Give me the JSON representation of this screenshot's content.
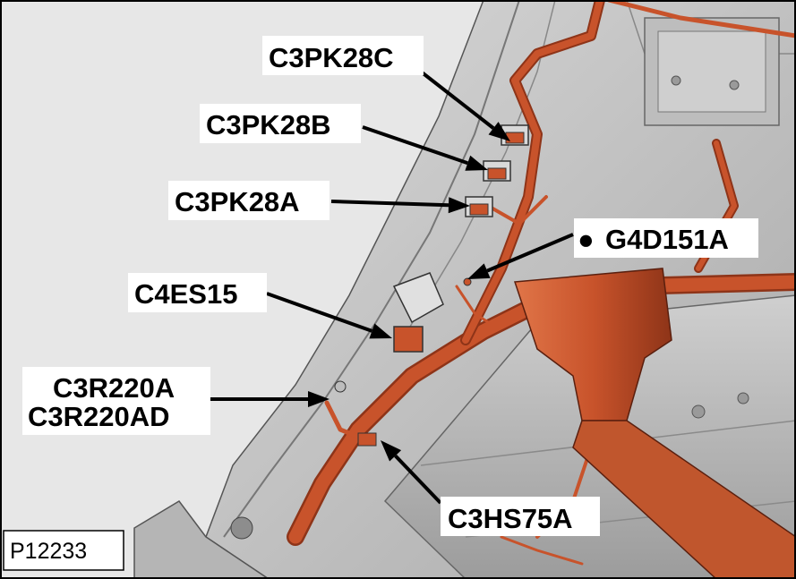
{
  "figure_id": "P12233",
  "callouts": {
    "c3pk28c": "C3PK28C",
    "c3pk28b": "C3PK28B",
    "c3pk28a": "C3PK28A",
    "g4d151a_symbol": "●",
    "g4d151a": "G4D151A",
    "c4es15": "C4ES15",
    "c3r220a": "C3R220A",
    "c3r220ad": "C3R220AD",
    "c3hs75a": "C3HS75A"
  },
  "colors": {
    "harness": "#c8532b",
    "harness_shadow": "#8e3418",
    "panel": "#c9c9c9",
    "background": "#e7e7e7"
  }
}
